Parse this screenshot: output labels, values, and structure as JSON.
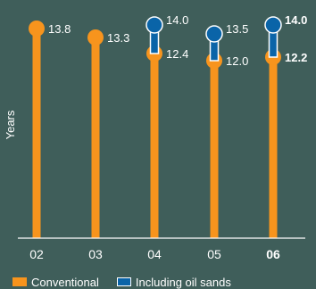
{
  "chart_data": {
    "type": "bar",
    "ylabel": "Years",
    "categories": [
      "02",
      "03",
      "04",
      "05",
      "06"
    ],
    "highlighted_category": "06",
    "series": [
      {
        "name": "Conventional",
        "values": [
          13.8,
          13.3,
          12.4,
          12.0,
          12.2
        ]
      },
      {
        "name": "Including oil sands",
        "values": [
          null,
          null,
          14.0,
          13.5,
          14.0
        ]
      }
    ],
    "grid": false,
    "legend_position": "bottom",
    "colors": {
      "background": "#3f5e5a",
      "conventional": "#f7941d",
      "oil_sands": "#0a64a8",
      "text": "#ffffff"
    }
  }
}
